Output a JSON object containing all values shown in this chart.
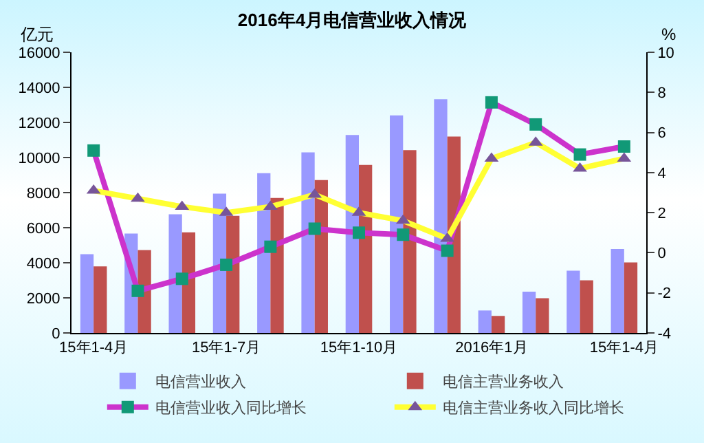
{
  "chart_data": {
    "type": "bar",
    "title": "2016年4月电信营业收入情况",
    "ylabel": "亿元",
    "y2label": "%",
    "categories": [
      "15年1-4月",
      null,
      null,
      "15年1-7月",
      null,
      null,
      "15年1-10月",
      null,
      null,
      "2016年1月",
      null,
      null,
      "15年1-4月"
    ],
    "series": [
      {
        "name": "电信营业收入",
        "color": "#9999ff",
        "values": [
          4490,
          5670,
          6760,
          7940,
          9110,
          10290,
          11280,
          12400,
          13320,
          1280,
          2350,
          3550,
          4780
        ]
      },
      {
        "name": "电信主营业务收入",
        "color": "#c0504d",
        "values": [
          3790,
          4730,
          5740,
          6680,
          7700,
          8720,
          9580,
          10420,
          11200,
          970,
          1980,
          3000,
          4020
        ]
      },
      {
        "name": "电信营业收入同比增长",
        "type": "line",
        "axis": "y2",
        "color": "#cc33cc",
        "marker": "square",
        "values": [
          5.1,
          -1.9,
          -1.3,
          -0.6,
          0.3,
          1.2,
          1.0,
          0.9,
          0.1,
          7.5,
          6.4,
          4.9,
          5.3
        ]
      },
      {
        "name": "电信主营业务收入同比增长",
        "type": "line",
        "axis": "y2",
        "color": "#ffff33",
        "marker": "triangle",
        "values": [
          3.1,
          2.7,
          2.3,
          2.0,
          2.3,
          2.9,
          2.0,
          1.6,
          0.7,
          4.7,
          5.5,
          4.2,
          4.7
        ]
      }
    ],
    "ylim": [
      0,
      16000
    ],
    "yticks": [
      0,
      2000,
      4000,
      6000,
      8000,
      10000,
      12000,
      14000,
      16000
    ],
    "y2lim": [
      -4,
      10
    ],
    "y2ticks": [
      -4,
      -2,
      0,
      2,
      4,
      6,
      8,
      10
    ],
    "grid": false,
    "legend": "bottom"
  }
}
